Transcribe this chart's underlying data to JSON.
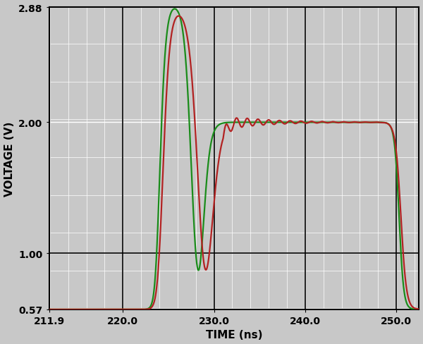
{
  "xlabel": "TIME (ns)",
  "ylabel": "VOLTAGE (V)",
  "xlim": [
    211.9,
    252.5
  ],
  "ylim": [
    0.57,
    2.88
  ],
  "xticks": [
    211.9,
    220.0,
    230.0,
    240.0,
    250.0
  ],
  "yticks": [
    0.57,
    1.0,
    2.0,
    2.88
  ],
  "xtick_labels": [
    "211.9",
    "220.0",
    "230.0",
    "240.0",
    "250.0"
  ],
  "ytick_labels": [
    "0.57",
    "1.00",
    "2.00",
    "2.88"
  ],
  "green_color": "#1a8c1a",
  "red_color": "#b22222",
  "background_color": "#c8c8c8",
  "grid_color": "#ffffff",
  "line_width": 1.6
}
